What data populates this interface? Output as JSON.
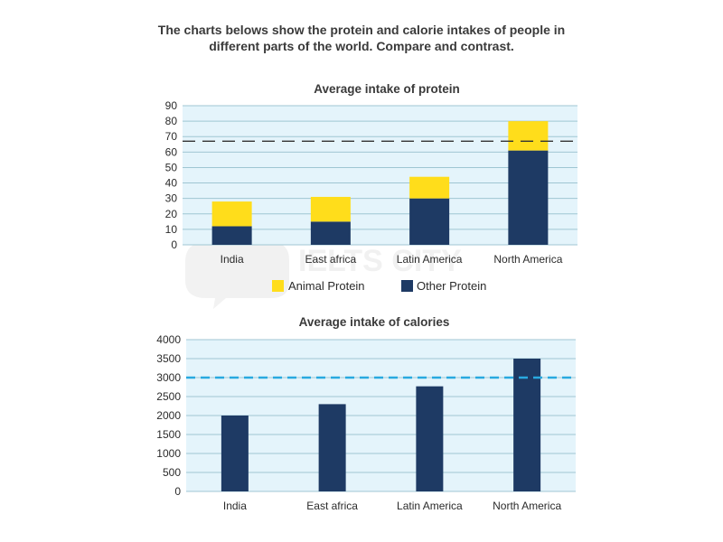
{
  "heading": {
    "line1": "The charts belows show the protein and calorie intakes of people in",
    "line2": "different parts of the world. Compare and contrast."
  },
  "watermark": "IELTS CITY",
  "colors": {
    "animal": "#ffdd1b",
    "other": "#1e3a64",
    "calories_bar": "#1e3a64",
    "plot_bg": "#e4f4fb",
    "grid": "#9fc6d3",
    "protein_ref_line": "#333333",
    "calorie_ref_line": "#29a9e0"
  },
  "chart_data": [
    {
      "type": "bar",
      "stacked": true,
      "title": "Average intake of protein",
      "categories": [
        "India",
        "East africa",
        "Latin America",
        "North America"
      ],
      "series": [
        {
          "name": "Other Protein",
          "values": [
            12,
            15,
            30,
            61
          ]
        },
        {
          "name": "Animal Protein",
          "values": [
            16,
            16,
            14,
            19
          ]
        }
      ],
      "yticks": [
        "0",
        "10",
        "20",
        "30",
        "40",
        "50",
        "60",
        "70",
        "80",
        "90"
      ],
      "ylim": [
        0,
        90
      ],
      "reference_line": 67,
      "grid": true,
      "legend": "bottom"
    },
    {
      "type": "bar",
      "title": "Average intake of calories",
      "categories": [
        "India",
        "East africa",
        "Latin America",
        "North America"
      ],
      "values": [
        2000,
        2300,
        2770,
        3500
      ],
      "yticks": [
        "0",
        "500",
        "1000",
        "1500",
        "2000",
        "2500",
        "3000",
        "3500",
        "4000"
      ],
      "ylim": [
        0,
        4000
      ],
      "reference_line": 3000,
      "grid": true
    }
  ]
}
